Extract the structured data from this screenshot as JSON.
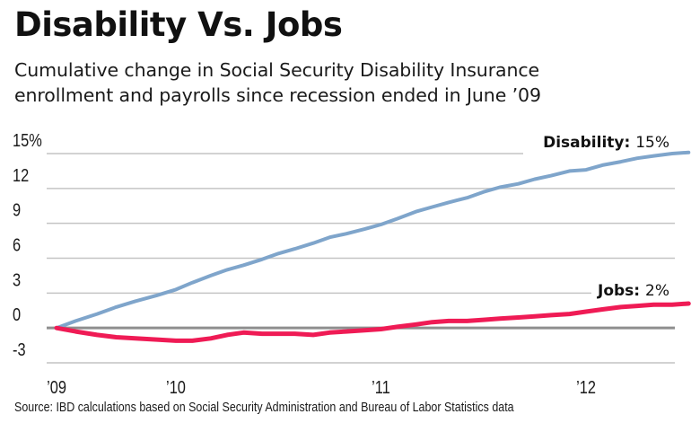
{
  "title": "Disability Vs. Jobs",
  "subtitle_lines": [
    "Cumulative change in Social Security Disability Insurance",
    "enrollment and payrolls since recession ended in June ’09"
  ],
  "source": "Source: IBD calculations based on Social Security Administration and Bureau of Labor Statistics data",
  "colors": {
    "disability": "#7fa5cb",
    "jobs": "#ef1b55",
    "grid": "#c4c4c4",
    "zero": "#8e8e8e"
  },
  "chart_data": {
    "type": "line",
    "title": "Disability Vs. Jobs",
    "xlabel": "",
    "ylabel": "",
    "ylim": [
      -3,
      15
    ],
    "yticks": [
      15,
      12,
      9,
      6,
      3,
      0,
      -3
    ],
    "ytick_labels": [
      "15%",
      "12",
      "9",
      "6",
      "3",
      "0",
      "-3"
    ],
    "xlim": [
      2009.5,
      2012.95
    ],
    "xticks": [
      2009.5,
      2010,
      2011,
      2012
    ],
    "xtick_labels": [
      "’09",
      "’10",
      "’11",
      "’12"
    ],
    "grid": true,
    "series": [
      {
        "name": "Disability",
        "label_bold": "Disability:",
        "label_value": "15%",
        "x": [
          2009.5,
          2009.58,
          2009.67,
          2009.75,
          2009.83,
          2009.92,
          2010.0,
          2010.08,
          2010.17,
          2010.25,
          2010.33,
          2010.42,
          2010.5,
          2010.58,
          2010.67,
          2010.75,
          2010.83,
          2010.92,
          2011.0,
          2011.08,
          2011.17,
          2011.25,
          2011.33,
          2011.42,
          2011.5,
          2011.58,
          2011.67,
          2011.75,
          2011.83,
          2011.92,
          2012.0,
          2012.08,
          2012.17,
          2012.25,
          2012.33,
          2012.42,
          2012.5
        ],
        "values": [
          0,
          0.6,
          1.2,
          1.8,
          2.3,
          2.8,
          3.3,
          3.9,
          4.5,
          5.0,
          5.4,
          5.9,
          6.4,
          6.8,
          7.3,
          7.8,
          8.1,
          8.5,
          8.9,
          9.4,
          10.0,
          10.4,
          10.8,
          11.2,
          11.7,
          12.1,
          12.4,
          12.8,
          13.1,
          13.5,
          13.6,
          14.0,
          14.3,
          14.6,
          14.8,
          15.0,
          15.1
        ],
        "color": "#7fa5cb"
      },
      {
        "name": "Jobs",
        "label_bold": "Jobs:",
        "label_value": "2%",
        "x": [
          2009.5,
          2009.58,
          2009.67,
          2009.75,
          2009.83,
          2009.92,
          2010.0,
          2010.08,
          2010.17,
          2010.25,
          2010.33,
          2010.42,
          2010.5,
          2010.58,
          2010.67,
          2010.75,
          2010.83,
          2010.92,
          2011.0,
          2011.08,
          2011.17,
          2011.25,
          2011.33,
          2011.42,
          2011.5,
          2011.58,
          2011.67,
          2011.75,
          2011.83,
          2011.92,
          2012.0,
          2012.08,
          2012.17,
          2012.25,
          2012.33,
          2012.42,
          2012.5
        ],
        "values": [
          0,
          -0.3,
          -0.6,
          -0.8,
          -0.9,
          -1.0,
          -1.1,
          -1.1,
          -0.9,
          -0.6,
          -0.4,
          -0.5,
          -0.5,
          -0.5,
          -0.6,
          -0.4,
          -0.3,
          -0.2,
          -0.1,
          0.1,
          0.3,
          0.5,
          0.6,
          0.6,
          0.7,
          0.8,
          0.9,
          1.0,
          1.1,
          1.2,
          1.4,
          1.6,
          1.8,
          1.9,
          2.0,
          2.0,
          2.1
        ],
        "color": "#ef1b55"
      }
    ]
  }
}
